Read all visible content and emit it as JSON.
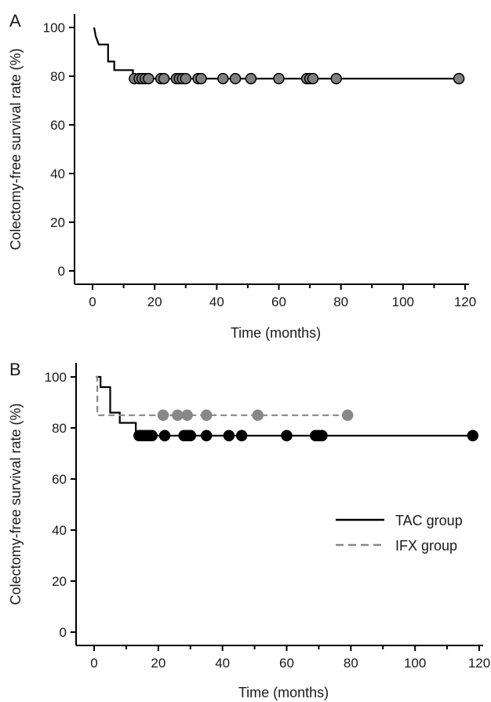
{
  "chart_data": [
    {
      "panel_label": "A",
      "type": "line",
      "xlabel": "Time (months)",
      "ylabel": "Colectomy-free survival rate (%)",
      "xlim": [
        0,
        125
      ],
      "ylim": [
        0,
        100
      ],
      "xticks": [
        0,
        20,
        40,
        60,
        80,
        100,
        120
      ],
      "yticks": [
        0,
        20,
        40,
        60,
        80,
        100
      ],
      "grid": false,
      "series": [
        {
          "style": "solid",
          "color": "#000000",
          "marker_color": "#808080",
          "step_points": [
            [
              0.5,
              100
            ],
            [
              1,
              96.5
            ],
            [
              2,
              93
            ],
            [
              5,
              93
            ],
            [
              5,
              86
            ],
            [
              7,
              86
            ],
            [
              7,
              82.5
            ],
            [
              13,
              82.5
            ],
            [
              13,
              79
            ],
            [
              118,
              79
            ]
          ],
          "censored_x": [
            13.5,
            15,
            16,
            17,
            18,
            22,
            23,
            27,
            28,
            29,
            30,
            34,
            35,
            42,
            46,
            51,
            60,
            69,
            70,
            71,
            78.5,
            118
          ]
        }
      ]
    },
    {
      "panel_label": "B",
      "type": "line",
      "xlabel": "Time (months)",
      "ylabel": "Colectomy-free survival rate (%)",
      "xlim": [
        0,
        125
      ],
      "ylim": [
        0,
        100
      ],
      "xticks": [
        0,
        20,
        40,
        60,
        80,
        100,
        120
      ],
      "yticks": [
        0,
        20,
        40,
        60,
        80,
        100
      ],
      "grid": false,
      "legend_position": "right",
      "series": [
        {
          "name": "TAC group",
          "style": "solid",
          "color": "#000000",
          "step_points": [
            [
              0.5,
              100
            ],
            [
              2,
              100
            ],
            [
              2,
              96
            ],
            [
              5,
              96
            ],
            [
              5,
              86
            ],
            [
              8,
              86
            ],
            [
              8,
              82
            ],
            [
              13,
              82
            ],
            [
              13,
              77
            ],
            [
              118,
              77
            ]
          ],
          "censored_x": [
            14,
            15,
            16,
            17,
            18,
            22,
            28,
            29,
            30,
            35,
            42,
            46,
            60,
            69,
            70,
            71,
            118
          ]
        },
        {
          "name": "IFX group",
          "style": "dashed",
          "color": "#888888",
          "step_points": [
            [
              0.5,
              100
            ],
            [
              1,
              100
            ],
            [
              1,
              85
            ],
            [
              79,
              85
            ]
          ],
          "censored_x": [
            21.5,
            26,
            29,
            35,
            51,
            79
          ]
        }
      ]
    }
  ]
}
